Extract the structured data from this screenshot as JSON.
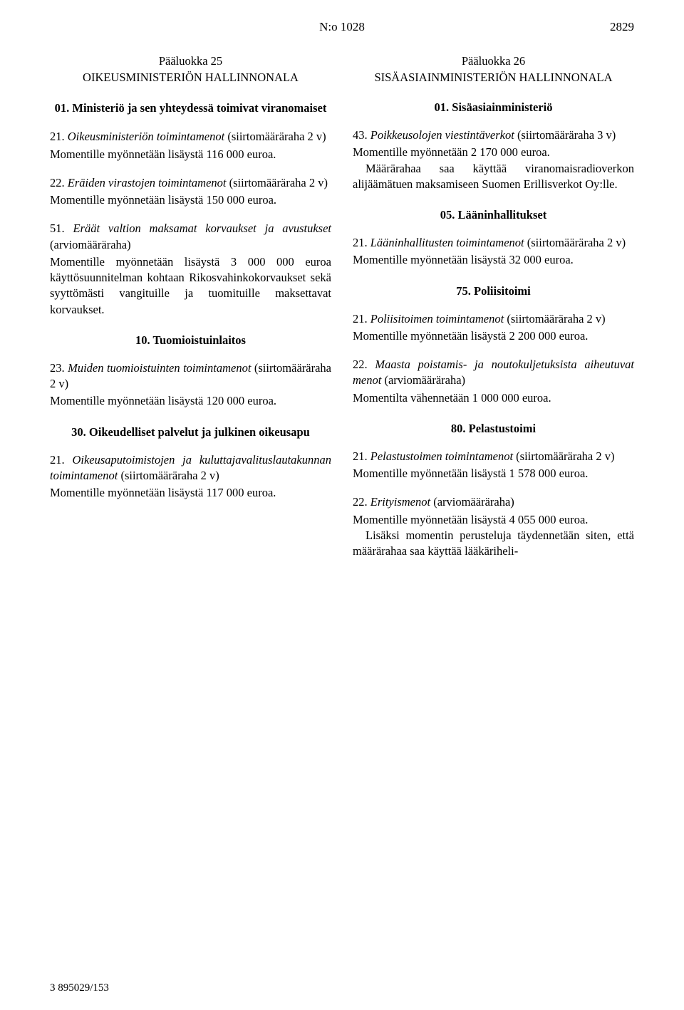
{
  "header": {
    "doc_number": "N:o 1028",
    "page_number": "2829"
  },
  "left": {
    "main_class_line": "Pääluokka 25",
    "main_class_title": "OIKEUSMINISTERIÖN HALLINNONALA",
    "ch01": {
      "heading": "01. Ministeriö ja sen yhteydessä toimivat viranomaiset",
      "i21": {
        "title_pre": "21. ",
        "title_it": "Oikeusministeriön toimintamenot ",
        "title_post": "(siirtomääräraha 2 v)",
        "body": "Momentille myönnetään lisäystä 116 000 euroa."
      },
      "i22": {
        "title_pre": "22. ",
        "title_it": "Eräiden virastojen toimintamenot ",
        "title_post": "(siirtomääräraha 2 v)",
        "body": "Momentille myönnetään lisäystä 150 000 euroa."
      },
      "i51": {
        "title_pre": "51. ",
        "title_it": "Eräät valtion maksamat korvaukset ja avustukset ",
        "title_post": "(arviomääräraha)",
        "body": "Momentille myönnetään lisäystä 3 000 000 euroa käyttösuunnitelman kohtaan Rikosvahinkokorvaukset sekä syyttömästi vangituille ja tuomituille maksettavat korvaukset."
      }
    },
    "ch10": {
      "heading": "10. Tuomioistuinlaitos",
      "i23": {
        "title_pre": "23. ",
        "title_it": "Muiden tuomioistuinten toimintamenot ",
        "title_post": "(siirtomääräraha 2 v)",
        "body": "Momentille myönnetään lisäystä 120 000 euroa."
      }
    },
    "ch30": {
      "heading": "30. Oikeudelliset palvelut ja julkinen oikeusapu",
      "i21": {
        "title_pre": "21. ",
        "title_it": "Oikeusaputoimistojen ja kuluttajavalituslautakunnan toimintamenot ",
        "title_post": "(siirtomääräraha 2 v)",
        "body": "Momentille myönnetään lisäystä 117 000 euroa."
      }
    }
  },
  "right": {
    "main_class_line": "Pääluokka 26",
    "main_class_title": "SISÄASIAINMINISTERIÖN HALLINNONALA",
    "ch01": {
      "heading": "01. Sisäasiainministeriö",
      "i43": {
        "title_pre": "43. ",
        "title_it": "Poikkeusolojen viestintäverkot ",
        "title_post": "(siirtomääräraha 3 v)",
        "body1": "Momentille myönnetään 2 170 000 euroa.",
        "body2": "Määrärahaa saa käyttää viranomaisradioverkon alijäämätuen maksamiseen Suomen Erillisverkot Oy:lle."
      }
    },
    "ch05": {
      "heading": "05. Lääninhallitukset",
      "i21": {
        "title_pre": "21. ",
        "title_it": "Lääninhallitusten toimintamenot ",
        "title_post": "(siirtomääräraha 2 v)",
        "body": "Momentille myönnetään lisäystä 32 000 euroa."
      }
    },
    "ch75": {
      "heading": "75. Poliisitoimi",
      "i21": {
        "title_pre": "21. ",
        "title_it": "Poliisitoimen toimintamenot ",
        "title_post": "(siirtomääräraha 2 v)",
        "body": "Momentille myönnetään lisäystä 2 200 000 euroa."
      },
      "i22": {
        "title_pre": "22. ",
        "title_it": "Maasta poistamis- ja noutokuljetuksista aiheutuvat menot ",
        "title_post": "(arviomääräraha)",
        "body": "Momentilta vähennetään 1 000 000 euroa."
      }
    },
    "ch80": {
      "heading": "80. Pelastustoimi",
      "i21": {
        "title_pre": "21. ",
        "title_it": "Pelastustoimen toimintamenot ",
        "title_post": "(siirtomääräraha 2 v)",
        "body": "Momentille myönnetään lisäystä 1 578 000 euroa."
      },
      "i22": {
        "title_pre": "22. ",
        "title_it": "Erityismenot ",
        "title_post": "(arviomääräraha)",
        "body1": "Momentille myönnetään lisäystä 4 055 000 euroa.",
        "body2": "Lisäksi momentin perusteluja täydennetään siten, että määrärahaa saa käyttää lääkäriheli-"
      }
    }
  },
  "footer": "3  895029/153"
}
